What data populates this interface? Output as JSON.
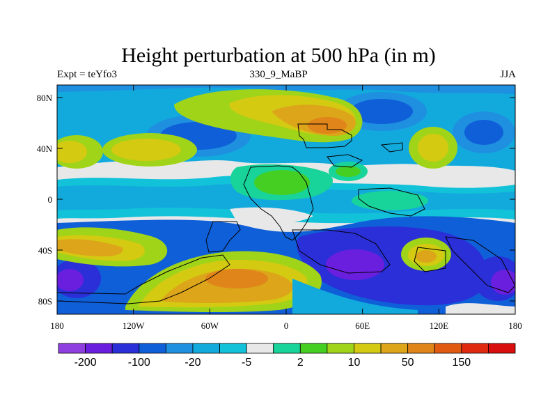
{
  "title": "Height perturbation at 500 hPa (in m)",
  "subtitle_left": "Expt = teYfo3",
  "subtitle_center": "330_9_MaBP",
  "subtitle_right": "JJA",
  "y_ticks": [
    "80N",
    "40N",
    "0",
    "40S",
    "80S"
  ],
  "x_ticks": [
    "180",
    "120W",
    "60W",
    "0",
    "60E",
    "120E",
    "180"
  ],
  "colorbar": {
    "colors": [
      "#8f3fe0",
      "#6a1fdf",
      "#2a2fd8",
      "#0f5fd8",
      "#1f8fe0",
      "#12aadd",
      "#12c2d8",
      "#e8e8e8",
      "#18d49a",
      "#46cf23",
      "#a0d419",
      "#d4ca12",
      "#dca51a",
      "#e0851a",
      "#e05a12",
      "#e02a10",
      "#d80d0d"
    ],
    "labels": [
      "-200",
      "-100",
      "-20",
      "-5",
      "2",
      "10",
      "50",
      "150"
    ]
  }
}
